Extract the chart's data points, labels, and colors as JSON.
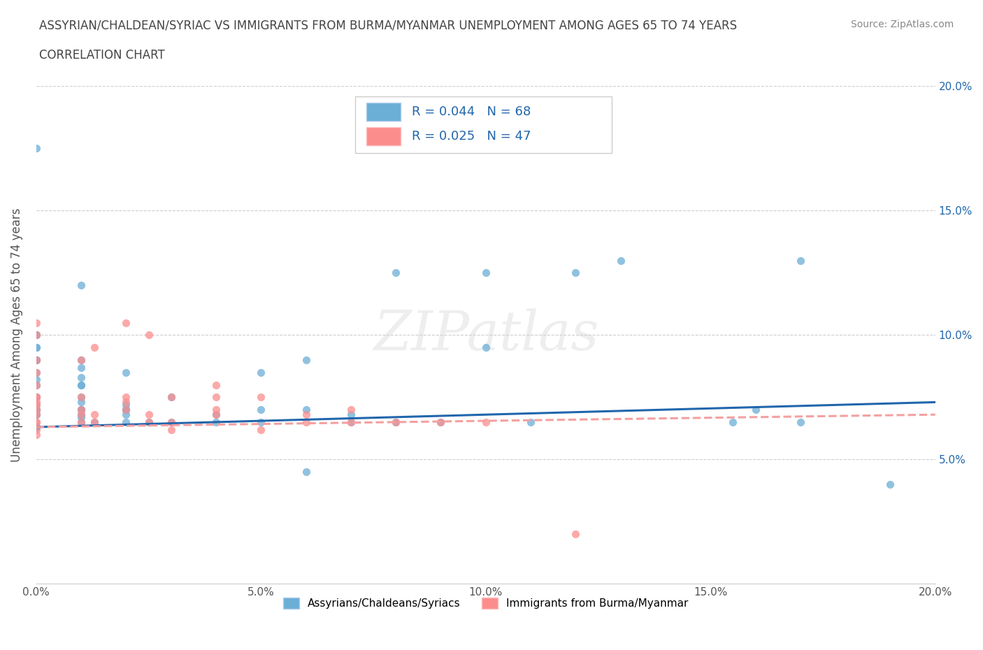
{
  "title_line1": "ASSYRIAN/CHALDEAN/SYRIAC VS IMMIGRANTS FROM BURMA/MYANMAR UNEMPLOYMENT AMONG AGES 65 TO 74 YEARS",
  "title_line2": "CORRELATION CHART",
  "source_text": "Source: ZipAtlas.com",
  "ylabel": "Unemployment Among Ages 65 to 74 years",
  "xlim": [
    0.0,
    0.2
  ],
  "ylim": [
    0.0,
    0.2
  ],
  "xticks": [
    0.0,
    0.05,
    0.1,
    0.15,
    0.2
  ],
  "yticks": [
    0.05,
    0.1,
    0.15,
    0.2
  ],
  "xtick_labels": [
    "0.0%",
    "5.0%",
    "10.0%",
    "15.0%",
    "20.0%"
  ],
  "ytick_labels": [
    "5.0%",
    "10.0%",
    "15.0%",
    "20.0%"
  ],
  "watermark": "ZIPatlas",
  "legend1_label": "Assyrians/Chaldeans/Syriacs",
  "legend2_label": "Immigrants from Burma/Myanmar",
  "R1": 0.044,
  "N1": 68,
  "R2": 0.025,
  "N2": 47,
  "color1": "#6baed6",
  "color2": "#fc8d8d",
  "line1_color": "#2166ac",
  "line2_color": "#f4a0a0",
  "grid_color": "#cccccc",
  "background_color": "#ffffff",
  "scatter1_x": [
    0.0,
    0.0,
    0.0,
    0.0,
    0.0,
    0.0,
    0.0,
    0.0,
    0.0,
    0.0,
    0.0,
    0.0,
    0.0,
    0.0,
    0.0,
    0.0,
    0.0,
    0.0,
    0.0,
    0.0,
    0.0,
    0.0,
    0.01,
    0.01,
    0.01,
    0.01,
    0.01,
    0.01,
    0.01,
    0.01,
    0.01,
    0.01,
    0.01,
    0.01,
    0.01,
    0.013,
    0.02,
    0.02,
    0.02,
    0.02,
    0.02,
    0.02,
    0.025,
    0.03,
    0.03,
    0.04,
    0.04,
    0.05,
    0.05,
    0.05,
    0.06,
    0.06,
    0.06,
    0.07,
    0.07,
    0.08,
    0.08,
    0.09,
    0.1,
    0.1,
    0.11,
    0.12,
    0.13,
    0.155,
    0.16,
    0.17,
    0.17,
    0.19
  ],
  "scatter1_y": [
    0.063,
    0.063,
    0.068,
    0.068,
    0.07,
    0.07,
    0.07,
    0.072,
    0.075,
    0.075,
    0.08,
    0.082,
    0.085,
    0.09,
    0.09,
    0.09,
    0.095,
    0.095,
    0.1,
    0.1,
    0.175,
    0.063,
    0.065,
    0.067,
    0.068,
    0.07,
    0.07,
    0.073,
    0.075,
    0.08,
    0.08,
    0.083,
    0.087,
    0.09,
    0.12,
    0.065,
    0.065,
    0.068,
    0.07,
    0.07,
    0.072,
    0.085,
    0.065,
    0.065,
    0.075,
    0.065,
    0.068,
    0.065,
    0.07,
    0.085,
    0.07,
    0.09,
    0.045,
    0.065,
    0.068,
    0.065,
    0.125,
    0.065,
    0.095,
    0.125,
    0.065,
    0.125,
    0.13,
    0.065,
    0.07,
    0.065,
    0.13,
    0.04
  ],
  "scatter2_x": [
    0.0,
    0.0,
    0.0,
    0.0,
    0.0,
    0.0,
    0.0,
    0.0,
    0.0,
    0.0,
    0.0,
    0.0,
    0.0,
    0.0,
    0.0,
    0.01,
    0.01,
    0.01,
    0.01,
    0.01,
    0.013,
    0.013,
    0.013,
    0.02,
    0.02,
    0.02,
    0.02,
    0.025,
    0.025,
    0.025,
    0.03,
    0.03,
    0.03,
    0.04,
    0.04,
    0.04,
    0.04,
    0.05,
    0.05,
    0.06,
    0.06,
    0.07,
    0.07,
    0.08,
    0.09,
    0.1,
    0.12
  ],
  "scatter2_y": [
    0.06,
    0.062,
    0.065,
    0.065,
    0.068,
    0.07,
    0.072,
    0.073,
    0.075,
    0.075,
    0.08,
    0.085,
    0.09,
    0.1,
    0.105,
    0.065,
    0.068,
    0.07,
    0.075,
    0.09,
    0.065,
    0.068,
    0.095,
    0.07,
    0.073,
    0.075,
    0.105,
    0.065,
    0.068,
    0.1,
    0.062,
    0.065,
    0.075,
    0.068,
    0.07,
    0.075,
    0.08,
    0.062,
    0.075,
    0.065,
    0.068,
    0.065,
    0.07,
    0.065,
    0.065,
    0.065,
    0.02
  ],
  "trendline1_x": [
    0.0,
    0.2
  ],
  "trendline1_y": [
    0.063,
    0.073
  ],
  "trendline2_x": [
    0.0,
    0.2
  ],
  "trendline2_y": [
    0.063,
    0.068
  ]
}
